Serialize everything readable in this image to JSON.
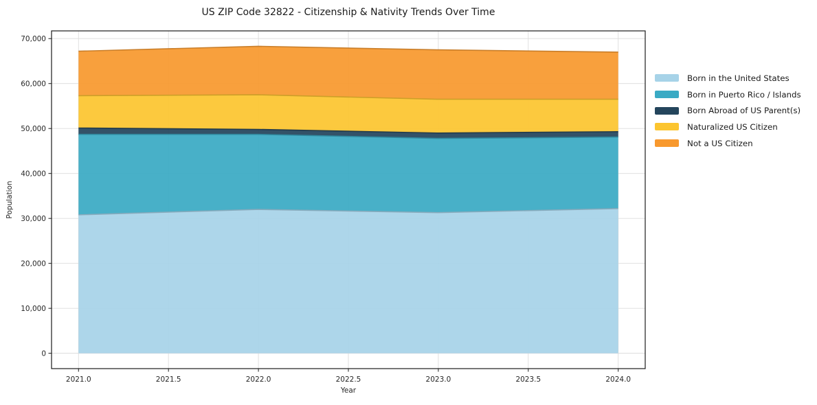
{
  "chart_data": {
    "type": "area",
    "stacked": true,
    "title": "US ZIP Code 32822 - Citizenship & Nativity Trends Over Time",
    "xlabel": "Year",
    "ylabel": "Population",
    "x": [
      2021,
      2022,
      2023,
      2024
    ],
    "series": [
      {
        "name": "Born in the United States",
        "color": "#A7D3E8",
        "values": [
          30800,
          32000,
          31300,
          32200
        ]
      },
      {
        "name": "Born in Puerto Rico / Islands",
        "color": "#3AAAC4",
        "values": [
          17900,
          16700,
          16500,
          15900
        ]
      },
      {
        "name": "Born Abroad of US Parent(s)",
        "color": "#24455C",
        "values": [
          1400,
          1100,
          1200,
          1200
        ]
      },
      {
        "name": "Naturalized US Citizen",
        "color": "#FCC52F",
        "values": [
          7200,
          7700,
          7500,
          7200
        ]
      },
      {
        "name": "Not a US Citizen",
        "color": "#F8992E",
        "values": [
          9900,
          10800,
          11000,
          10500
        ]
      }
    ],
    "stacked_totals": [
      67200,
      68300,
      67500,
      67000
    ],
    "x_ticks": [
      2021.0,
      2021.5,
      2022.0,
      2022.5,
      2023.0,
      2023.5,
      2024.0
    ],
    "x_tick_labels": [
      "2021.0",
      "2021.5",
      "2022.0",
      "2022.5",
      "2023.0",
      "2023.5",
      "2024.0"
    ],
    "y_ticks": [
      0,
      10000,
      20000,
      30000,
      40000,
      50000,
      60000,
      70000
    ],
    "y_tick_labels": [
      "0",
      "10,000",
      "20,000",
      "30,000",
      "40,000",
      "50,000",
      "60,000",
      "70,000"
    ],
    "xlim": [
      2020.85,
      2024.15
    ],
    "ylim": [
      -3415,
      71715
    ],
    "grid": true,
    "legend_position": "right-outside",
    "background_color": "#FFFFFF"
  }
}
